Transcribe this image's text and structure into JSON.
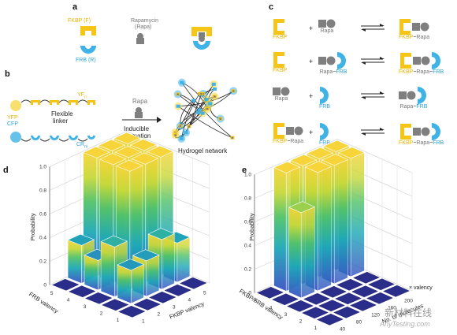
{
  "panels": {
    "a": "a",
    "b": "b",
    "c": "c",
    "d": "d",
    "e": "e"
  },
  "panel_a": {
    "fkbp": "FKBP (F)",
    "frb": "FRB (R)",
    "rapa_line1": "Rapamycin",
    "rapa_line2": "(Rapa)"
  },
  "panel_b": {
    "yfp": "YFP",
    "cfp": "CFP",
    "yf": "YF",
    "yf_sub": "n",
    "cr": "CR",
    "cr_sub": "m",
    "linker1": "Flexible",
    "linker2": "linker",
    "rapa": "Rapa",
    "inducible1": "Inducible",
    "inducible2": "formation",
    "hydrogel": "Hydrogel network"
  },
  "panel_c": {
    "rows": [
      {
        "left": [
          {
            "t": "FKBP",
            "c": "yel"
          }
        ],
        "right": [
          {
            "t": "Rapa",
            "c": "gry"
          }
        ],
        "product": [
          {
            "t": "FKBP",
            "c": "yel"
          },
          {
            "t": "−",
            "c": "dk"
          },
          {
            "t": "Rapa",
            "c": "gry"
          }
        ]
      },
      {
        "left": [
          {
            "t": "FKBP",
            "c": "yel"
          }
        ],
        "right": [
          {
            "t": "Rapa",
            "c": "gry"
          },
          {
            "t": "−",
            "c": "dk"
          },
          {
            "t": "FRB",
            "c": "blu"
          }
        ],
        "product": [
          {
            "t": "FKBP",
            "c": "yel"
          },
          {
            "t": "−",
            "c": "dk"
          },
          {
            "t": "Rapa",
            "c": "gry"
          },
          {
            "t": "−",
            "c": "dk"
          },
          {
            "t": "FRB",
            "c": "blu"
          }
        ]
      },
      {
        "left": [
          {
            "t": "Rapa",
            "c": "gry"
          }
        ],
        "right": [
          {
            "t": "FRB",
            "c": "blu"
          }
        ],
        "product": [
          {
            "t": "Rapa",
            "c": "gry"
          },
          {
            "t": "−",
            "c": "dk"
          },
          {
            "t": "FRB",
            "c": "blu"
          }
        ]
      },
      {
        "left": [
          {
            "t": "FKBP",
            "c": "yel"
          },
          {
            "t": "−",
            "c": "dk"
          },
          {
            "t": "Rapa",
            "c": "gry"
          }
        ],
        "right": [
          {
            "t": "FRB",
            "c": "blu"
          }
        ],
        "product": [
          {
            "t": "FKBP",
            "c": "yel"
          },
          {
            "t": "−",
            "c": "dk"
          },
          {
            "t": "Rapa",
            "c": "gry"
          },
          {
            "t": "−",
            "c": "dk"
          },
          {
            "t": "FRB",
            "c": "blu"
          }
        ]
      }
    ],
    "plus": "+"
  },
  "chart_data": [
    {
      "type": "bar3d",
      "panel": "d",
      "zlabel": "Probability",
      "xlabel": "FKBP valency",
      "ylabel": "FRB valency",
      "x_ticks": [
        "1",
        "2",
        "3",
        "4",
        "5"
      ],
      "y_ticks": [
        "1",
        "2",
        "3",
        "4",
        "5"
      ],
      "z_ticks": [
        "0",
        "0.2",
        "0.4",
        "0.6",
        "0.8",
        "1.0"
      ],
      "zlim": [
        0,
        1
      ],
      "values": [
        [
          0,
          0,
          0,
          0,
          0
        ],
        [
          0,
          0.28,
          0.3,
          0.42,
          0.33
        ],
        [
          0,
          0.42,
          1.0,
          1.0,
          1.0
        ],
        [
          0,
          0.25,
          1.0,
          1.0,
          1.0
        ],
        [
          0,
          0.32,
          1.0,
          1.0,
          1.0
        ]
      ],
      "values_layout": "rows = FRB valency 1..5, cols = FKBP valency 1..5"
    },
    {
      "type": "bar3d",
      "panel": "e",
      "zlabel": "Probability",
      "xlabel": "No. of molecules",
      "ylabel": "FKBP/FRB valency",
      "x_ticks": [
        "40",
        "80",
        "120",
        "160",
        "200"
      ],
      "y_ticks": [
        "1",
        "2",
        "3",
        "4",
        "5"
      ],
      "z_ticks": [
        "0",
        "0.2",
        "0.4",
        "0.6",
        "0.8",
        "1.0"
      ],
      "zlim": [
        0,
        1
      ],
      "values": [
        [
          0,
          0,
          0,
          0,
          0
        ],
        [
          0,
          0,
          0,
          0,
          0
        ],
        [
          0,
          0,
          0,
          0,
          0
        ],
        [
          0,
          0.72,
          1.0,
          1.0,
          1.0
        ],
        [
          0,
          1.0,
          1.0,
          1.0,
          1.0
        ]
      ],
      "values_layout": "rows = FKBP/FRB valency 1..5, cols = No. of molecules 40..200"
    }
  ],
  "axis_extra": {
    "e_valency_suffix": "× valency"
  },
  "watermark": {
    "line1": "新材料在线",
    "line2": "AnyTesting.com"
  },
  "colors": {
    "fkbp": "#f5c518",
    "frb": "#3fb3e6",
    "rapa": "#7f7f7f",
    "floor": "#2b2d8a"
  }
}
